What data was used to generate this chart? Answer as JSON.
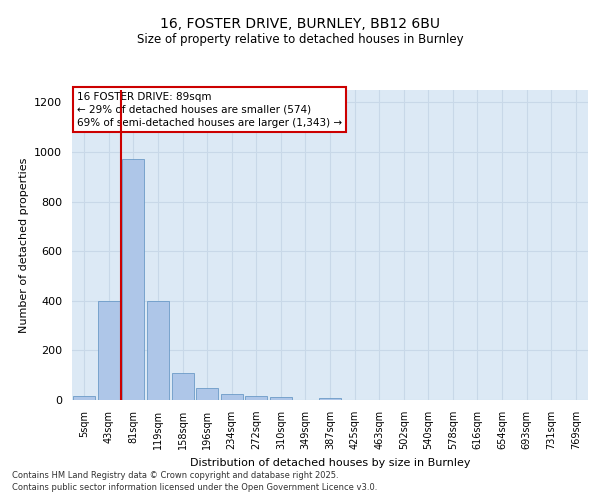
{
  "title1": "16, FOSTER DRIVE, BURNLEY, BB12 6BU",
  "title2": "Size of property relative to detached houses in Burnley",
  "xlabel": "Distribution of detached houses by size in Burnley",
  "ylabel": "Number of detached properties",
  "categories": [
    "5sqm",
    "43sqm",
    "81sqm",
    "119sqm",
    "158sqm",
    "196sqm",
    "234sqm",
    "272sqm",
    "310sqm",
    "349sqm",
    "387sqm",
    "425sqm",
    "463sqm",
    "502sqm",
    "540sqm",
    "578sqm",
    "616sqm",
    "654sqm",
    "693sqm",
    "731sqm",
    "769sqm"
  ],
  "values": [
    15,
    400,
    970,
    400,
    110,
    50,
    25,
    18,
    12,
    0,
    8,
    0,
    0,
    0,
    0,
    0,
    0,
    0,
    0,
    0,
    0
  ],
  "bar_color": "#aec6e8",
  "bar_edge_color": "#5a8fc0",
  "grid_color": "#c8d8e8",
  "background_color": "#dce9f5",
  "annotation_box_text": "16 FOSTER DRIVE: 89sqm\n← 29% of detached houses are smaller (574)\n69% of semi-detached houses are larger (1,343) →",
  "vline_x": 1.5,
  "vline_color": "#cc0000",
  "ylim": [
    0,
    1250
  ],
  "yticks": [
    0,
    200,
    400,
    600,
    800,
    1000,
    1200
  ],
  "footnote1": "Contains HM Land Registry data © Crown copyright and database right 2025.",
  "footnote2": "Contains public sector information licensed under the Open Government Licence v3.0."
}
